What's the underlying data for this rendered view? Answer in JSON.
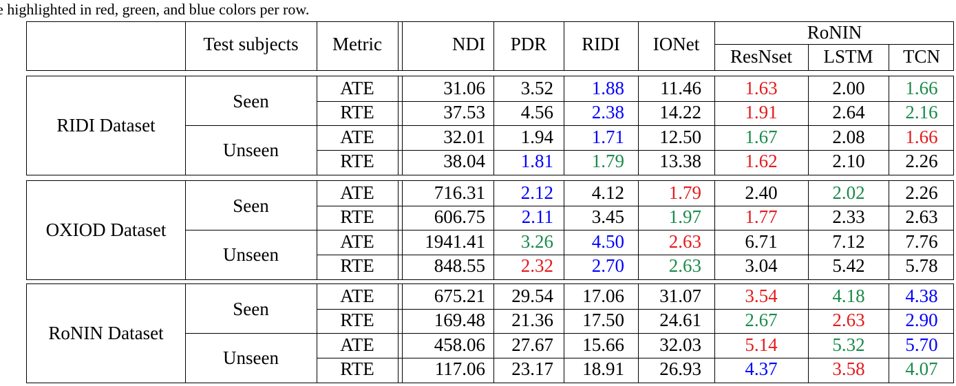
{
  "caption": "e highlighted in red, green, and blue colors per row.",
  "header": {
    "test_subjects": "Test subjects",
    "metric": "Metric",
    "methods": [
      "NDI",
      "PDR",
      "RIDI",
      "IONet"
    ],
    "ronin_group": "RoNIN",
    "ronin_methods": [
      "ResNset",
      "LSTM",
      "TCN"
    ]
  },
  "highlight_colors": {
    "red": "#e41a1c",
    "green": "#1a8a4a",
    "blue": "#0000ff"
  },
  "datasets": [
    {
      "name": "RIDI Dataset",
      "groups": [
        {
          "subjects": "Seen",
          "rows": [
            {
              "metric": "ATE",
              "cells": [
                {
                  "v": "31.06",
                  "c": "black"
                },
                {
                  "v": "3.52",
                  "c": "black"
                },
                {
                  "v": "1.88",
                  "c": "blue"
                },
                {
                  "v": "11.46",
                  "c": "black"
                },
                {
                  "v": "1.63",
                  "c": "red"
                },
                {
                  "v": "2.00",
                  "c": "black"
                },
                {
                  "v": "1.66",
                  "c": "green"
                }
              ]
            },
            {
              "metric": "RTE",
              "cells": [
                {
                  "v": "37.53",
                  "c": "black"
                },
                {
                  "v": "4.56",
                  "c": "black"
                },
                {
                  "v": "2.38",
                  "c": "blue"
                },
                {
                  "v": "14.22",
                  "c": "black"
                },
                {
                  "v": "1.91",
                  "c": "red"
                },
                {
                  "v": "2.64",
                  "c": "black"
                },
                {
                  "v": "2.16",
                  "c": "green"
                }
              ]
            }
          ]
        },
        {
          "subjects": "Unseen",
          "rows": [
            {
              "metric": "ATE",
              "cells": [
                {
                  "v": "32.01",
                  "c": "black"
                },
                {
                  "v": "1.94",
                  "c": "black"
                },
                {
                  "v": "1.71",
                  "c": "blue"
                },
                {
                  "v": "12.50",
                  "c": "black"
                },
                {
                  "v": "1.67",
                  "c": "green"
                },
                {
                  "v": "2.08",
                  "c": "black"
                },
                {
                  "v": "1.66",
                  "c": "red"
                }
              ]
            },
            {
              "metric": "RTE",
              "cells": [
                {
                  "v": "38.04",
                  "c": "black"
                },
                {
                  "v": "1.81",
                  "c": "blue"
                },
                {
                  "v": "1.79",
                  "c": "green"
                },
                {
                  "v": "13.38",
                  "c": "black"
                },
                {
                  "v": "1.62",
                  "c": "red"
                },
                {
                  "v": "2.10",
                  "c": "black"
                },
                {
                  "v": "2.26",
                  "c": "black"
                }
              ]
            }
          ]
        }
      ]
    },
    {
      "name": "OXIOD Dataset",
      "groups": [
        {
          "subjects": "Seen",
          "rows": [
            {
              "metric": "ATE",
              "cells": [
                {
                  "v": "716.31",
                  "c": "black"
                },
                {
                  "v": "2.12",
                  "c": "blue"
                },
                {
                  "v": "4.12",
                  "c": "black"
                },
                {
                  "v": "1.79",
                  "c": "red"
                },
                {
                  "v": "2.40",
                  "c": "black"
                },
                {
                  "v": "2.02",
                  "c": "green"
                },
                {
                  "v": "2.26",
                  "c": "black"
                }
              ]
            },
            {
              "metric": "RTE",
              "cells": [
                {
                  "v": "606.75",
                  "c": "black"
                },
                {
                  "v": "2.11",
                  "c": "blue"
                },
                {
                  "v": "3.45",
                  "c": "black"
                },
                {
                  "v": "1.97",
                  "c": "green"
                },
                {
                  "v": "1.77",
                  "c": "red"
                },
                {
                  "v": "2.33",
                  "c": "black"
                },
                {
                  "v": "2.63",
                  "c": "black"
                }
              ]
            }
          ]
        },
        {
          "subjects": "Unseen",
          "rows": [
            {
              "metric": "ATE",
              "cells": [
                {
                  "v": "1941.41",
                  "c": "black"
                },
                {
                  "v": "3.26",
                  "c": "green"
                },
                {
                  "v": "4.50",
                  "c": "blue"
                },
                {
                  "v": "2.63",
                  "c": "red"
                },
                {
                  "v": "6.71",
                  "c": "black"
                },
                {
                  "v": "7.12",
                  "c": "black"
                },
                {
                  "v": "7.76",
                  "c": "black"
                }
              ]
            },
            {
              "metric": "RTE",
              "cells": [
                {
                  "v": "848.55",
                  "c": "black"
                },
                {
                  "v": "2.32",
                  "c": "red"
                },
                {
                  "v": "2.70",
                  "c": "blue"
                },
                {
                  "v": "2.63",
                  "c": "green"
                },
                {
                  "v": "3.04",
                  "c": "black"
                },
                {
                  "v": "5.42",
                  "c": "black"
                },
                {
                  "v": "5.78",
                  "c": "black"
                }
              ]
            }
          ]
        }
      ]
    },
    {
      "name": "RoNIN Dataset",
      "groups": [
        {
          "subjects": "Seen",
          "rows": [
            {
              "metric": "ATE",
              "cells": [
                {
                  "v": "675.21",
                  "c": "black"
                },
                {
                  "v": "29.54",
                  "c": "black"
                },
                {
                  "v": "17.06",
                  "c": "black"
                },
                {
                  "v": "31.07",
                  "c": "black"
                },
                {
                  "v": "3.54",
                  "c": "red"
                },
                {
                  "v": "4.18",
                  "c": "green"
                },
                {
                  "v": "4.38",
                  "c": "blue"
                }
              ]
            },
            {
              "metric": "RTE",
              "cells": [
                {
                  "v": "169.48",
                  "c": "black"
                },
                {
                  "v": "21.36",
                  "c": "black"
                },
                {
                  "v": "17.50",
                  "c": "black"
                },
                {
                  "v": "24.61",
                  "c": "black"
                },
                {
                  "v": "2.67",
                  "c": "green"
                },
                {
                  "v": "2.63",
                  "c": "red"
                },
                {
                  "v": "2.90",
                  "c": "blue"
                }
              ]
            }
          ]
        },
        {
          "subjects": "Unseen",
          "rows": [
            {
              "metric": "ATE",
              "cells": [
                {
                  "v": "458.06",
                  "c": "black"
                },
                {
                  "v": "27.67",
                  "c": "black"
                },
                {
                  "v": "15.66",
                  "c": "black"
                },
                {
                  "v": "32.03",
                  "c": "black"
                },
                {
                  "v": "5.14",
                  "c": "red"
                },
                {
                  "v": "5.32",
                  "c": "green"
                },
                {
                  "v": "5.70",
                  "c": "blue"
                }
              ]
            },
            {
              "metric": "RTE",
              "cells": [
                {
                  "v": "117.06",
                  "c": "black"
                },
                {
                  "v": "23.17",
                  "c": "black"
                },
                {
                  "v": "18.91",
                  "c": "black"
                },
                {
                  "v": "26.93",
                  "c": "black"
                },
                {
                  "v": "4.37",
                  "c": "blue"
                },
                {
                  "v": "3.58",
                  "c": "red"
                },
                {
                  "v": "4.07",
                  "c": "green"
                }
              ]
            }
          ]
        }
      ]
    }
  ]
}
